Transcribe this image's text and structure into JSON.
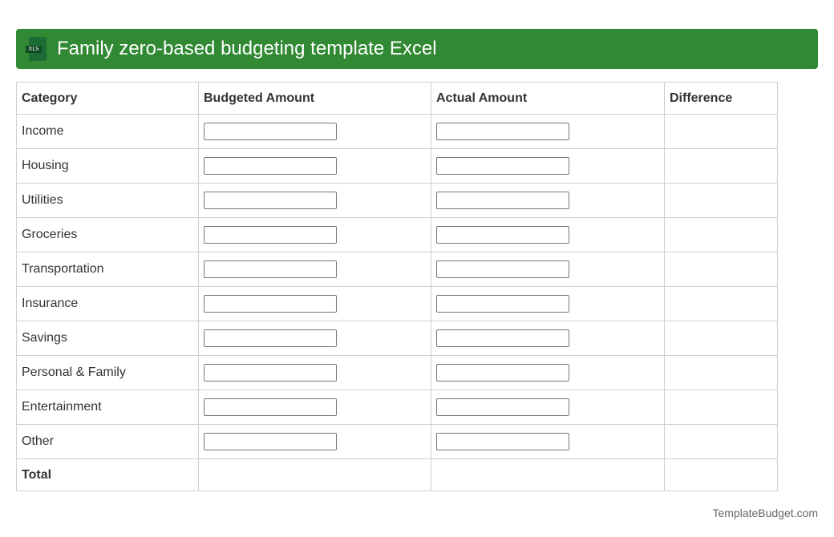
{
  "header": {
    "title": "Family zero-based budgeting template Excel",
    "icon": "xls-file-icon",
    "icon_label": "XLS",
    "color": "#318a33"
  },
  "table": {
    "columns": [
      "Category",
      "Budgeted Amount",
      "Actual Amount",
      "Difference"
    ],
    "rows": [
      "Income",
      "Housing",
      "Utilities",
      "Groceries",
      "Transportation",
      "Insurance",
      "Savings",
      "Personal & Family",
      "Entertainment",
      "Other"
    ],
    "total_label": "Total"
  },
  "footer": {
    "brand": "TemplateBudget.com"
  }
}
